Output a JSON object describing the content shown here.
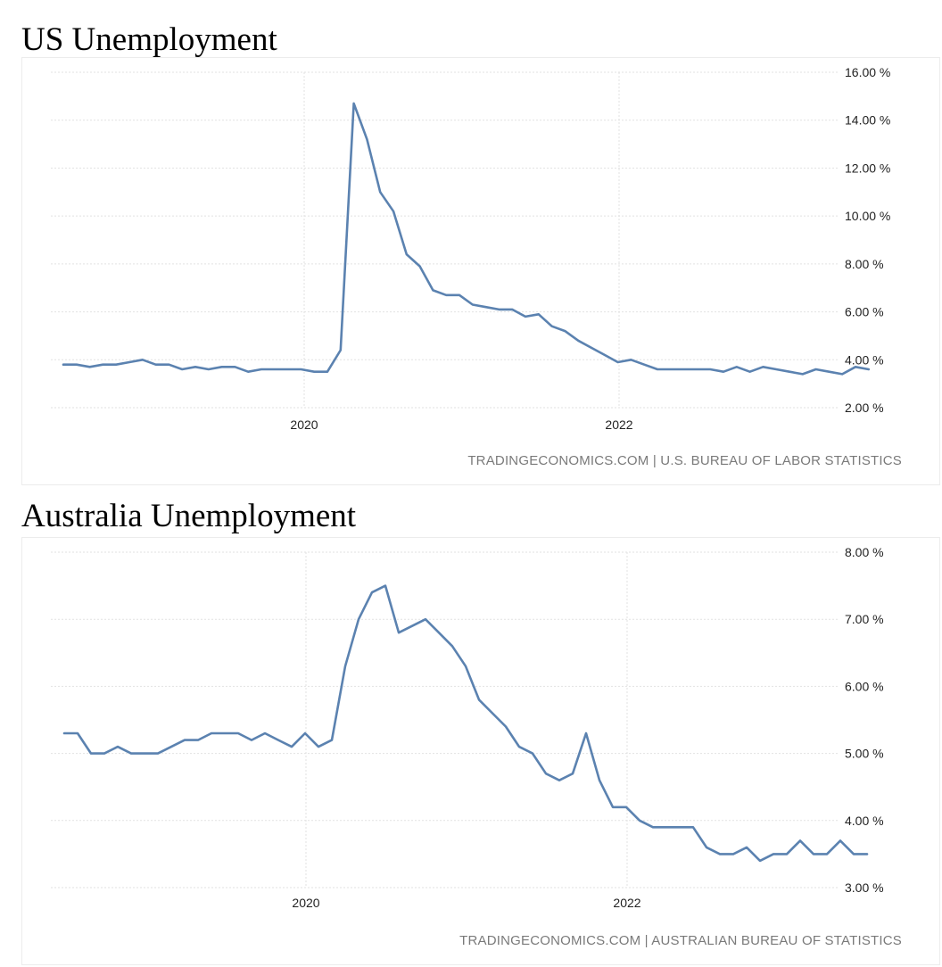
{
  "charts": [
    {
      "title": "US Unemployment",
      "source": "TRADINGECONOMICS.COM | U.S. BUREAU OF LABOR STATISTICS",
      "line_color": "#5b82b0"
    },
    {
      "title": "Australia Unemployment",
      "source": "TRADINGECONOMICS.COM | AUSTRALIAN BUREAU OF STATISTICS",
      "line_color": "#5b82b0"
    }
  ],
  "chart_data": [
    {
      "type": "line",
      "title": "US Unemployment",
      "xlabel": "",
      "ylabel": "",
      "x_ticks": [
        "2020",
        "2022"
      ],
      "y_ticks": [
        "16.00 %",
        "14.00 %",
        "12.00 %",
        "10.00 %",
        "8.00 %",
        "6.00 %",
        "4.00 %",
        "2.00 %"
      ],
      "ylim": [
        2,
        16
      ],
      "x_start": "2018-07",
      "grid": true,
      "series": [
        {
          "values": [
            3.8,
            3.8,
            3.7,
            3.8,
            3.8,
            3.9,
            4.0,
            3.8,
            3.8,
            3.6,
            3.7,
            3.6,
            3.7,
            3.7,
            3.5,
            3.6,
            3.6,
            3.6,
            3.6,
            3.5,
            3.5,
            4.4,
            14.7,
            13.2,
            11.0,
            10.2,
            8.4,
            7.9,
            6.9,
            6.7,
            6.7,
            6.3,
            6.2,
            6.1,
            6.1,
            5.8,
            5.9,
            5.4,
            5.2,
            4.8,
            4.5,
            4.2,
            3.9,
            4.0,
            3.8,
            3.6,
            3.6,
            3.6,
            3.6,
            3.6,
            3.5,
            3.7,
            3.5,
            3.7,
            3.6,
            3.5,
            3.4,
            3.6,
            3.5,
            3.4,
            3.7,
            3.6
          ]
        }
      ]
    },
    {
      "type": "line",
      "title": "Australia Unemployment",
      "xlabel": "",
      "ylabel": "",
      "x_ticks": [
        "2020",
        "2022"
      ],
      "y_ticks": [
        "8.00 %",
        "7.00 %",
        "6.00 %",
        "5.00 %",
        "4.00 %",
        "3.00 %"
      ],
      "ylim": [
        3,
        8
      ],
      "x_start": "2018-07",
      "grid": true,
      "series": [
        {
          "values": [
            5.3,
            5.3,
            5.0,
            5.0,
            5.1,
            5.0,
            5.0,
            5.0,
            5.1,
            5.2,
            5.2,
            5.3,
            5.3,
            5.3,
            5.2,
            5.3,
            5.2,
            5.1,
            5.3,
            5.1,
            5.2,
            6.3,
            7.0,
            7.4,
            7.5,
            6.8,
            6.9,
            7.0,
            6.8,
            6.6,
            6.3,
            5.8,
            5.6,
            5.4,
            5.1,
            5.0,
            4.7,
            4.6,
            4.7,
            5.3,
            4.6,
            4.2,
            4.2,
            4.0,
            3.9,
            3.9,
            3.9,
            3.9,
            3.6,
            3.5,
            3.5,
            3.6,
            3.4,
            3.5,
            3.5,
            3.7,
            3.5,
            3.5,
            3.7,
            3.5,
            3.5
          ]
        }
      ]
    }
  ]
}
